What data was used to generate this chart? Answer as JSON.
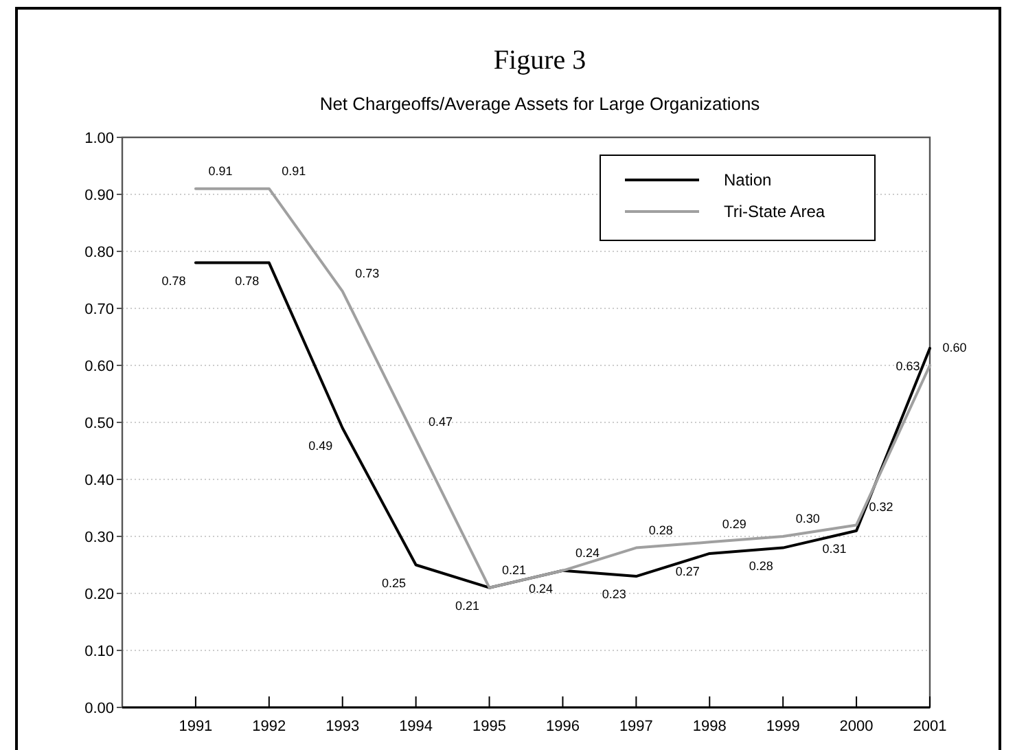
{
  "chart_data": {
    "type": "line",
    "title": "Figure 3",
    "subtitle": "Net Chargeoffs/Average Assets for Large Organizations",
    "x": [
      1991,
      1992,
      1993,
      1994,
      1995,
      1996,
      1997,
      1998,
      1999,
      2000,
      2001
    ],
    "xlim": [
      1990,
      2001
    ],
    "xticks": [
      1991,
      1992,
      1993,
      1994,
      1995,
      1996,
      1997,
      1998,
      1999,
      2000,
      2001
    ],
    "ylim": [
      0,
      1
    ],
    "yticks": [
      {
        "value": 0,
        "label": "0.00"
      },
      {
        "value": 0.1,
        "label": "0.10"
      },
      {
        "value": 0.2,
        "label": "0.20"
      },
      {
        "value": 0.3,
        "label": "0.30"
      },
      {
        "value": 0.4,
        "label": "0.40"
      },
      {
        "value": 0.5,
        "label": "0.50"
      },
      {
        "value": 0.6,
        "label": "0.60"
      },
      {
        "value": 0.7,
        "label": "0.70"
      },
      {
        "value": 0.8,
        "label": "0.80"
      },
      {
        "value": 0.9,
        "label": "0.90"
      },
      {
        "value": 1,
        "label": "1.00"
      }
    ],
    "grid": "y",
    "legend": "top right",
    "marker": "none",
    "line_style": "solid",
    "series": [
      {
        "name": "Nation",
        "color": "#000000",
        "values": [
          0.78,
          0.78,
          0.49,
          0.25,
          0.21,
          0.24,
          0.23,
          0.27,
          0.28,
          0.31,
          0.63
        ],
        "value_labels": [
          "0.78",
          "0.78",
          "0.49",
          "0.25",
          "0.21",
          "0.24",
          "0.23",
          "0.27",
          "0.28",
          "0.31",
          "0.63"
        ]
      },
      {
        "name": "Tri-State Area",
        "color": "#a0a0a0",
        "values": [
          0.91,
          0.91,
          0.73,
          0.47,
          0.21,
          0.24,
          0.28,
          0.29,
          0.3,
          0.32,
          0.6
        ],
        "value_labels": [
          "0.91",
          "0.91",
          "0.73",
          "0.47",
          "0.21",
          "0.24",
          "0.28",
          "0.29",
          "0.30",
          "0.32",
          "0.60"
        ]
      }
    ]
  }
}
